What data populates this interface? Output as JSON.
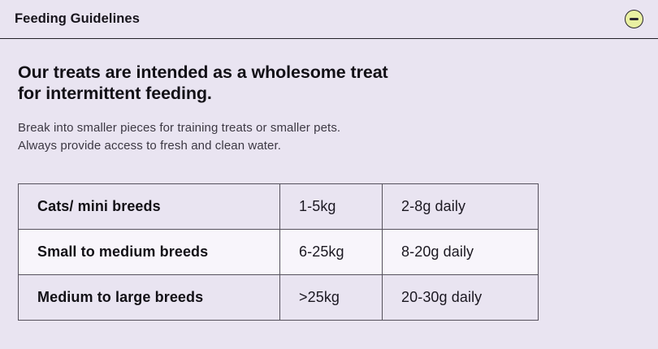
{
  "colors": {
    "background": "#E9E4F1",
    "row_highlight": "#F8F5FB",
    "icon_fill": "#E9F0A2",
    "text_primary": "#17141C",
    "text_secondary": "#3C3843",
    "border_dark": "#2F2B35",
    "border_inner": "#55515C"
  },
  "header": {
    "title": "Feeding Guidelines",
    "collapse_icon": "minus-circle"
  },
  "content": {
    "heading_lines": {
      "0": "Our treats are intended as a wholesome treat",
      "1": "for intermittent feeding."
    },
    "note_lines": {
      "0": "Break into smaller pieces for training treats or smaller pets.",
      "1": "Always provide access to fresh and clean water."
    }
  },
  "table": {
    "rows": [
      {
        "breed": "Cats/ mini breeds",
        "weight_range": "1-5kg",
        "daily_amount": "2-8g daily"
      },
      {
        "breed": "Small to medium breeds",
        "weight_range": "6-25kg",
        "daily_amount": "8-20g daily"
      },
      {
        "breed": "Medium to large breeds",
        "weight_range": ">25kg",
        "daily_amount": "20-30g daily"
      }
    ]
  }
}
